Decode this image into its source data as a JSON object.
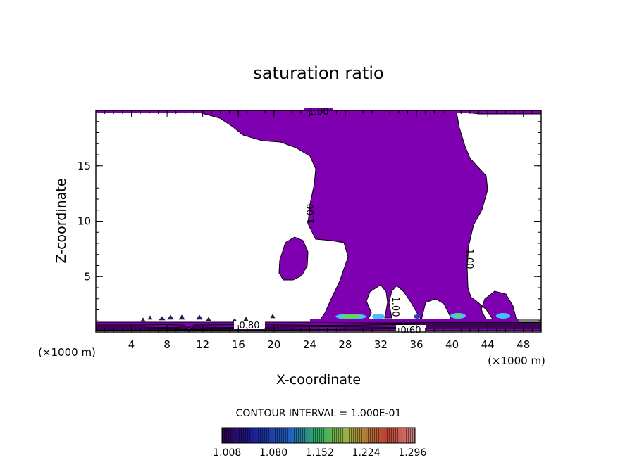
{
  "chart_data": {
    "type": "contour",
    "title": "saturation ratio",
    "xlabel": "X-coordinate",
    "ylabel": "Z-coordinate",
    "x_unit": "(×1000 m)",
    "xlim": [
      0,
      50
    ],
    "ylim": [
      0,
      20
    ],
    "x_ticks": [
      4,
      8,
      12,
      16,
      20,
      24,
      28,
      32,
      36,
      40,
      44,
      48
    ],
    "y_ticks": [
      5,
      10,
      15
    ],
    "contour_interval_text": "CONTOUR INTERVAL = 1.000E-01",
    "contour_labels": [
      "1.00",
      "1.00",
      "1.00",
      "1.00",
      "0.80",
      "0.60"
    ],
    "colorbar": {
      "ticks": [
        "1.008",
        "1.080",
        "1.152",
        "1.224",
        "1.296"
      ],
      "range": [
        1.0,
        1.3
      ]
    },
    "fill_color": "#7e00b0"
  }
}
